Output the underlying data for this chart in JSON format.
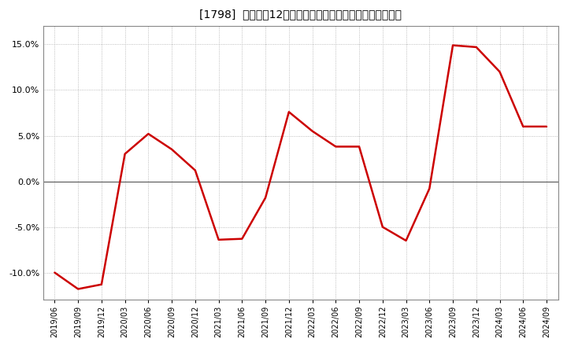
{
  "title": "[1798]  売上高の12か月移動合計の対前年同期増減率の推移",
  "line_color": "#cc0000",
  "background_color": "#ffffff",
  "plot_bg_color": "#ffffff",
  "grid_color": "#aaaaaa",
  "zero_line_color": "#555555",
  "ylim": [
    -0.13,
    0.17
  ],
  "yticks": [
    -0.1,
    -0.05,
    0.0,
    0.05,
    0.1,
    0.15
  ],
  "dates": [
    "2019/06",
    "2019/09",
    "2019/12",
    "2020/03",
    "2020/06",
    "2020/09",
    "2020/12",
    "2021/03",
    "2021/06",
    "2021/09",
    "2021/12",
    "2022/03",
    "2022/06",
    "2022/09",
    "2022/12",
    "2023/03",
    "2023/06",
    "2023/09",
    "2023/12",
    "2024/03",
    "2024/06",
    "2024/09"
  ],
  "values": [
    -0.1,
    -0.118,
    -0.113,
    0.03,
    0.052,
    0.035,
    0.012,
    -0.064,
    -0.063,
    -0.018,
    0.076,
    0.055,
    0.038,
    0.038,
    -0.05,
    -0.065,
    -0.008,
    0.149,
    0.147,
    0.12,
    0.06,
    0.06
  ],
  "figsize": [
    7.2,
    4.4
  ],
  "dpi": 100,
  "line_width": 1.8,
  "title_fontsize": 10,
  "ytick_fontsize": 8,
  "xtick_fontsize": 7
}
